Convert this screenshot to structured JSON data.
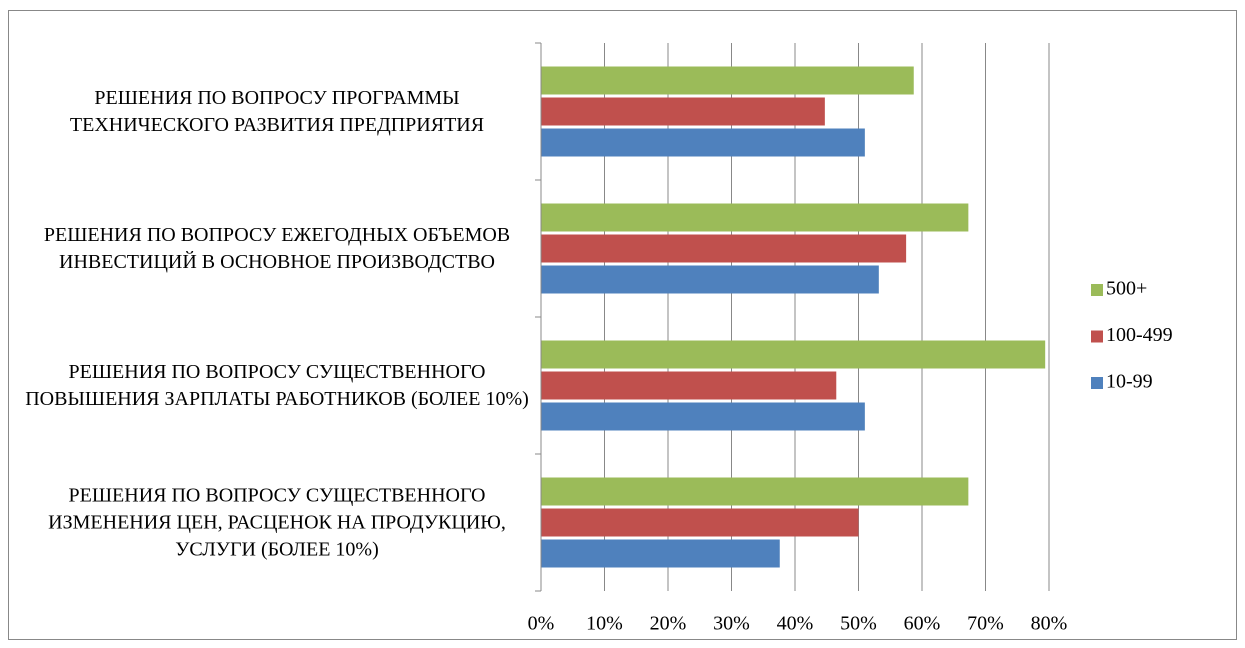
{
  "chart_data": {
    "type": "bar",
    "orientation": "horizontal",
    "categories": [
      "РЕШЕНИЯ ПО ВОПРОСУ ПРОГРАММЫ ТЕХНИЧЕСКОГО РАЗВИТИЯ ПРЕДПРИЯТИЯ",
      "РЕШЕНИЯ ПО ВОПРОСУ ЕЖЕГОДНЫХ ОБЪЕМОВ ИНВЕСТИЦИЙ В ОСНОВНОЕ ПРОИЗВОДСТВО",
      "РЕШЕНИЯ ПО ВОПРОСУ СУЩЕСТВЕННОГО ПОВЫШЕНИЯ ЗАРПЛАТЫ РАБОТНИКОВ (БОЛЕЕ 10%)",
      "РЕШЕНИЯ ПО ВОПРОСУ СУЩЕСТВЕННОГО ИЗМЕНЕНИЯ ЦЕН, РАСЦЕНОК НА ПРОДУКЦИЮ, УСЛУГИ (БОЛЕЕ 10%)"
    ],
    "series": [
      {
        "name": "500+",
        "color": "#9bbb59",
        "values": [
          58.7,
          67.3,
          79.4,
          67.3
        ]
      },
      {
        "name": "100-499",
        "color": "#c0504d",
        "values": [
          44.7,
          57.5,
          46.5,
          50
        ]
      },
      {
        "name": "10-99",
        "color": "#4f81bd",
        "values": [
          51,
          53.2,
          51,
          37.6
        ]
      }
    ],
    "xlim": [
      0,
      80
    ],
    "xticks": [
      {
        "value": 0,
        "label": "0%"
      },
      {
        "value": 10,
        "label": "10%"
      },
      {
        "value": 20,
        "label": "20%"
      },
      {
        "value": 30,
        "label": "30%"
      },
      {
        "value": 40,
        "label": "40%"
      },
      {
        "value": 50,
        "label": "50%"
      },
      {
        "value": 60,
        "label": "60%"
      },
      {
        "value": 70,
        "label": "70%"
      },
      {
        "value": 80,
        "label": "80%"
      }
    ],
    "grid": true,
    "legend": "right"
  }
}
